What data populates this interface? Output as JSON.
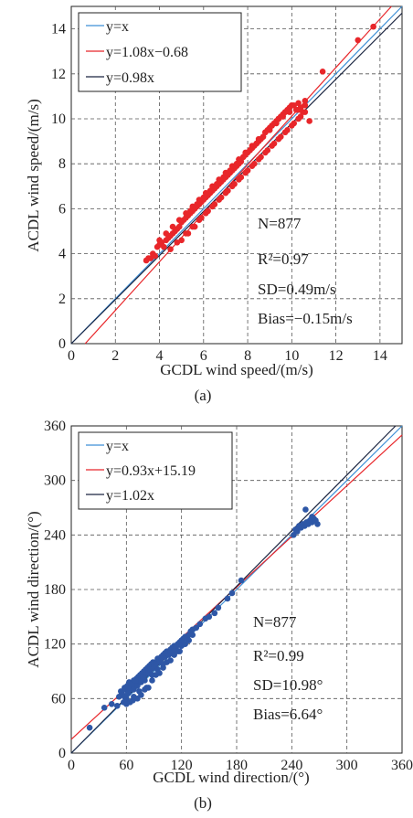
{
  "chart_data": [
    {
      "type": "scatter",
      "panel_label": "(a)",
      "xlabel": "GCDL wind speed/(m/s)",
      "ylabel": "ACDL wind speed/(m/s)",
      "xlim": [
        0,
        15
      ],
      "ylim": [
        0,
        15
      ],
      "xticks": [
        "0",
        "2",
        "4",
        "6",
        "8",
        "10",
        "12",
        "14"
      ],
      "yticks": [
        "0",
        "2",
        "4",
        "6",
        "8",
        "10",
        "12",
        "14"
      ],
      "grid": true,
      "legend_position": "top-left",
      "point_color": "#e8262a",
      "lines": [
        {
          "name": "y=x",
          "slope": 1,
          "intercept": 0,
          "color": "#3d8fd6"
        },
        {
          "name": "y=1.08x−0.68",
          "slope": 1.08,
          "intercept": -0.68,
          "color": "#e8262a"
        },
        {
          "name": "y=0.98x",
          "slope": 0.98,
          "intercept": 0,
          "color": "#1a2440"
        }
      ],
      "stats": [
        "N=877",
        "R²=0.97",
        "SD=0.49m/s",
        "Bias=−0.15m/s"
      ],
      "series": [
        {
          "x": [
            3.4,
            3.6,
            3.8,
            3.9,
            4.0,
            4.1,
            4.2,
            4.3,
            4.4,
            4.5,
            4.6,
            4.7,
            4.8,
            4.9,
            5.0,
            5.1,
            5.2,
            5.3,
            5.4,
            5.5,
            5.6,
            5.7,
            5.8,
            5.9,
            6.0,
            6.1,
            6.2,
            6.3,
            6.4,
            6.5,
            6.6,
            6.7,
            6.8,
            6.9,
            7.0,
            7.1,
            7.2,
            7.3,
            7.4,
            7.5,
            7.6,
            7.7,
            7.8,
            7.9,
            8.0,
            8.1,
            8.2,
            8.3,
            8.4,
            8.5,
            8.6,
            8.7,
            8.8,
            8.9,
            9.0,
            9.1,
            9.2,
            9.3,
            9.4,
            9.5,
            9.6,
            9.7,
            9.8,
            9.9,
            10.0,
            10.1,
            10.2,
            10.3,
            10.4,
            10.5,
            10.6,
            10.8,
            11.4,
            13.0,
            13.7,
            5.0,
            5.3,
            5.6,
            5.9,
            6.2,
            6.5,
            6.8,
            7.1,
            7.4,
            7.7,
            8.0,
            8.3,
            8.6,
            8.9,
            9.2,
            9.5,
            9.8,
            10.1,
            10.4,
            4.5,
            4.8,
            5.2,
            5.5,
            5.8,
            6.1,
            6.4,
            6.7,
            7.0,
            7.3,
            7.6,
            7.9,
            8.2,
            8.5,
            8.8,
            9.1,
            9.4,
            9.7,
            10.0,
            10.3,
            10.6,
            3.5,
            3.7,
            4.0,
            4.3,
            4.6,
            4.9,
            5.2,
            5.5,
            5.8,
            6.1,
            6.4,
            6.7,
            7.0,
            7.3,
            7.6,
            7.9,
            8.2,
            8.5,
            8.8,
            9.1,
            9.4,
            9.7,
            10.0,
            10.3,
            10.6,
            5.4,
            5.7,
            6.0,
            6.3,
            6.6,
            6.9,
            7.2,
            7.5,
            7.8,
            8.1,
            8.4,
            8.7,
            9.0,
            9.3,
            9.6,
            9.9
          ],
          "y": [
            3.7,
            3.8,
            3.9,
            4.3,
            4.4,
            4.5,
            4.3,
            4.6,
            4.7,
            4.8,
            4.9,
            5.0,
            5.1,
            5.2,
            5.4,
            5.5,
            5.6,
            5.7,
            5.8,
            5.9,
            6.0,
            6.1,
            6.2,
            6.3,
            6.4,
            6.5,
            6.6,
            6.7,
            6.8,
            6.9,
            7.0,
            7.1,
            7.2,
            7.3,
            7.4,
            7.5,
            7.6,
            7.7,
            7.8,
            7.9,
            8.0,
            8.1,
            8.3,
            8.4,
            8.5,
            8.6,
            8.7,
            8.8,
            8.9,
            9.0,
            9.1,
            9.2,
            9.4,
            9.5,
            9.6,
            9.7,
            9.8,
            9.9,
            10.0,
            10.1,
            10.2,
            10.3,
            10.4,
            10.5,
            10.6,
            10.6,
            10.4,
            10.7,
            10.5,
            10.3,
            10.8,
            9.9,
            12.1,
            13.5,
            14.1,
            4.6,
            4.9,
            5.2,
            5.6,
            5.9,
            6.2,
            6.5,
            6.8,
            7.1,
            7.4,
            7.7,
            8.0,
            8.3,
            8.6,
            8.9,
            9.2,
            9.5,
            9.8,
            10.1,
            4.2,
            4.5,
            4.9,
            5.2,
            5.5,
            5.8,
            6.1,
            6.4,
            6.7,
            7.0,
            7.3,
            7.6,
            7.9,
            8.2,
            8.5,
            8.8,
            9.1,
            9.4,
            9.7,
            10.0,
            10.3,
            3.8,
            4.0,
            4.6,
            4.9,
            5.2,
            5.5,
            5.8,
            6.1,
            6.4,
            6.7,
            7.0,
            7.3,
            7.6,
            7.9,
            8.2,
            8.5,
            8.8,
            9.1,
            9.4,
            9.7,
            10.0,
            10.3,
            10.6,
            10.4,
            10.6,
            5.9,
            6.2,
            6.5,
            6.8,
            7.1,
            7.4,
            7.7,
            8.0,
            8.3,
            8.6,
            8.9,
            9.2,
            9.5,
            9.8,
            10.1,
            10.3
          ]
        }
      ]
    },
    {
      "type": "scatter",
      "panel_label": "(b)",
      "xlabel": "GCDL wind direction/(°)",
      "ylabel": "ACDL wind direction/(°)",
      "xlim": [
        0,
        360
      ],
      "ylim": [
        0,
        360
      ],
      "xticks": [
        "0",
        "60",
        "120",
        "180",
        "240",
        "300",
        "360"
      ],
      "yticks": [
        "0",
        "60",
        "120",
        "180",
        "240",
        "300",
        "360"
      ],
      "grid": true,
      "legend_position": "top-left",
      "point_color": "#2e57a6",
      "lines": [
        {
          "name": "y=x",
          "slope": 1,
          "intercept": 0,
          "color": "#3d8fd6"
        },
        {
          "name": "y=0.93x+15.19",
          "slope": 0.93,
          "intercept": 15.19,
          "color": "#e8262a"
        },
        {
          "name": "y=1.02x",
          "slope": 1.02,
          "intercept": 0,
          "color": "#1a2440"
        }
      ],
      "stats": [
        "N=877",
        "R²=0.99",
        "SD=10.98°",
        "Bias=6.64°"
      ],
      "series": [
        {
          "x": [
            20,
            36,
            44,
            50,
            52,
            54,
            55,
            56,
            57,
            58,
            59,
            60,
            61,
            62,
            63,
            64,
            65,
            66,
            67,
            68,
            69,
            70,
            71,
            72,
            73,
            74,
            75,
            76,
            77,
            78,
            79,
            80,
            81,
            82,
            83,
            84,
            85,
            86,
            87,
            88,
            89,
            90,
            92,
            94,
            96,
            98,
            100,
            102,
            104,
            106,
            108,
            110,
            112,
            114,
            116,
            118,
            120,
            122,
            124,
            126,
            128,
            130,
            132,
            136,
            140,
            146,
            150,
            156,
            160,
            170,
            175,
            185,
            242,
            244,
            246,
            248,
            250,
            252,
            254,
            256,
            258,
            260,
            262,
            264,
            266,
            268,
            255,
            262,
            58,
            60,
            62,
            64,
            66,
            68,
            70,
            72,
            74,
            76,
            78,
            80,
            82,
            84,
            86,
            88,
            90,
            92,
            94,
            96,
            98,
            100,
            102,
            104,
            106,
            108,
            110,
            112,
            114,
            116,
            118,
            120,
            60,
            64,
            68,
            72,
            76,
            80,
            84,
            88,
            92,
            96,
            100,
            104,
            108,
            112,
            116,
            120,
            124,
            128,
            132
          ],
          "y": [
            28,
            50,
            54,
            52,
            62,
            68,
            66,
            64,
            56,
            72,
            70,
            60,
            74,
            66,
            78,
            70,
            72,
            76,
            58,
            80,
            74,
            78,
            82,
            76,
            84,
            80,
            86,
            82,
            88,
            84,
            90,
            86,
            92,
            88,
            94,
            90,
            96,
            92,
            98,
            94,
            100,
            96,
            100,
            104,
            102,
            106,
            108,
            110,
            112,
            110,
            114,
            116,
            118,
            116,
            120,
            122,
            124,
            126,
            128,
            126,
            130,
            134,
            136,
            138,
            142,
            148,
            150,
            154,
            160,
            170,
            176,
            190,
            240,
            246,
            244,
            250,
            248,
            252,
            250,
            254,
            252,
            256,
            254,
            258,
            256,
            252,
            268,
            260,
            62,
            58,
            66,
            72,
            76,
            70,
            80,
            74,
            68,
            78,
            84,
            80,
            72,
            88,
            92,
            86,
            94,
            98,
            92,
            100,
            104,
            98,
            106,
            110,
            108,
            112,
            116,
            114,
            118,
            120,
            112,
            124,
            54,
            56,
            62,
            60,
            64,
            70,
            72,
            80,
            86,
            88,
            94,
            100,
            102,
            108,
            112,
            118,
            120,
            124,
            130
          ]
        }
      ]
    }
  ]
}
